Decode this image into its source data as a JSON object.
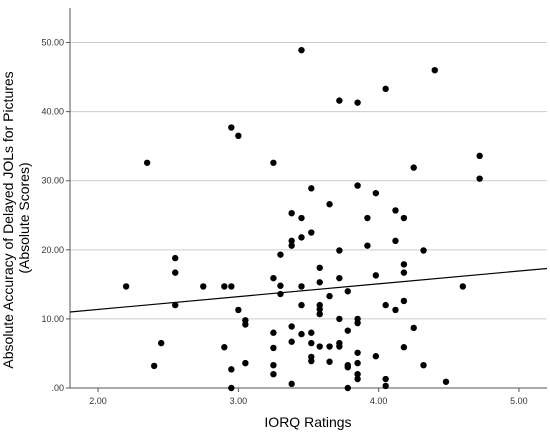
{
  "chart_data": {
    "type": "scatter",
    "title": "",
    "xlabel": "IORQ Ratings",
    "ylabel_lines": [
      "Absolute Accuracy of Delayed JOLs for Pictures",
      "(Absolute Scores)"
    ],
    "xlim": [
      1.8,
      5.2
    ],
    "ylim": [
      0,
      55
    ],
    "x_ticks": [
      2.0,
      3.0,
      4.0,
      5.0
    ],
    "x_tick_labels": [
      "2.00",
      "3.00",
      "4.00",
      "5.00"
    ],
    "y_ticks": [
      0,
      10,
      20,
      30,
      40,
      50
    ],
    "y_tick_labels": [
      ".00",
      "10.00",
      "20.00",
      "30.00",
      "40.00",
      "50.00"
    ],
    "grid": "horizontal",
    "fit_line": {
      "x": [
        1.8,
        5.2
      ],
      "y": [
        11.0,
        17.3
      ]
    },
    "colors": {
      "point": "#000000",
      "line": "#000000",
      "grid": "#cccccc",
      "axis": "#555555"
    },
    "points": [
      [
        2.2,
        14.7
      ],
      [
        2.35,
        32.6
      ],
      [
        2.4,
        3.2
      ],
      [
        2.45,
        6.5
      ],
      [
        2.55,
        18.8
      ],
      [
        2.55,
        16.7
      ],
      [
        2.55,
        12.0
      ],
      [
        2.75,
        14.7
      ],
      [
        2.9,
        14.7
      ],
      [
        2.9,
        5.9
      ],
      [
        2.95,
        37.7
      ],
      [
        2.95,
        14.7
      ],
      [
        2.95,
        2.7
      ],
      [
        2.95,
        0.0
      ],
      [
        3.0,
        36.5
      ],
      [
        3.0,
        11.3
      ],
      [
        3.05,
        9.2
      ],
      [
        3.05,
        9.8
      ],
      [
        3.05,
        3.6
      ],
      [
        3.25,
        32.6
      ],
      [
        3.25,
        15.9
      ],
      [
        3.25,
        8.0
      ],
      [
        3.25,
        5.8
      ],
      [
        3.25,
        3.3
      ],
      [
        3.25,
        2.0
      ],
      [
        3.3,
        19.3
      ],
      [
        3.3,
        14.8
      ],
      [
        3.3,
        13.6
      ],
      [
        3.38,
        25.3
      ],
      [
        3.38,
        21.3
      ],
      [
        3.38,
        20.6
      ],
      [
        3.38,
        8.9
      ],
      [
        3.38,
        6.7
      ],
      [
        3.38,
        0.6
      ],
      [
        3.45,
        48.9
      ],
      [
        3.45,
        24.6
      ],
      [
        3.45,
        21.8
      ],
      [
        3.45,
        14.7
      ],
      [
        3.45,
        12.0
      ],
      [
        3.45,
        7.8
      ],
      [
        3.52,
        28.9
      ],
      [
        3.52,
        22.5
      ],
      [
        3.52,
        8.0
      ],
      [
        3.52,
        6.5
      ],
      [
        3.52,
        4.5
      ],
      [
        3.52,
        3.9
      ],
      [
        3.58,
        17.4
      ],
      [
        3.58,
        15.3
      ],
      [
        3.58,
        12.0
      ],
      [
        3.58,
        11.4
      ],
      [
        3.58,
        10.7
      ],
      [
        3.58,
        6.0
      ],
      [
        3.65,
        26.6
      ],
      [
        3.65,
        13.3
      ],
      [
        3.65,
        6.0
      ],
      [
        3.65,
        3.8
      ],
      [
        3.72,
        41.6
      ],
      [
        3.72,
        19.9
      ],
      [
        3.72,
        15.9
      ],
      [
        3.72,
        10.0
      ],
      [
        3.72,
        6.5
      ],
      [
        3.72,
        6.0
      ],
      [
        3.78,
        14.0
      ],
      [
        3.78,
        8.3
      ],
      [
        3.78,
        3.3
      ],
      [
        3.78,
        3.0
      ],
      [
        3.78,
        0.0
      ],
      [
        3.85,
        41.3
      ],
      [
        3.85,
        29.3
      ],
      [
        3.85,
        10.0
      ],
      [
        3.85,
        9.4
      ],
      [
        3.85,
        5.1
      ],
      [
        3.85,
        3.6
      ],
      [
        3.85,
        2.0
      ],
      [
        3.85,
        1.3
      ],
      [
        3.92,
        24.6
      ],
      [
        3.92,
        20.6
      ],
      [
        3.98,
        28.2
      ],
      [
        3.98,
        16.3
      ],
      [
        3.98,
        4.6
      ],
      [
        4.05,
        43.3
      ],
      [
        4.05,
        12.0
      ],
      [
        4.05,
        1.3
      ],
      [
        4.05,
        0.3
      ],
      [
        4.12,
        25.7
      ],
      [
        4.12,
        21.3
      ],
      [
        4.12,
        11.3
      ],
      [
        4.18,
        24.6
      ],
      [
        4.18,
        17.9
      ],
      [
        4.18,
        16.7
      ],
      [
        4.18,
        12.6
      ],
      [
        4.18,
        5.9
      ],
      [
        4.25,
        31.9
      ],
      [
        4.25,
        8.7
      ],
      [
        4.32,
        19.9
      ],
      [
        4.32,
        3.3
      ],
      [
        4.4,
        46.0
      ],
      [
        4.48,
        0.9
      ],
      [
        4.6,
        14.7
      ],
      [
        4.72,
        33.6
      ],
      [
        4.72,
        30.3
      ]
    ]
  }
}
